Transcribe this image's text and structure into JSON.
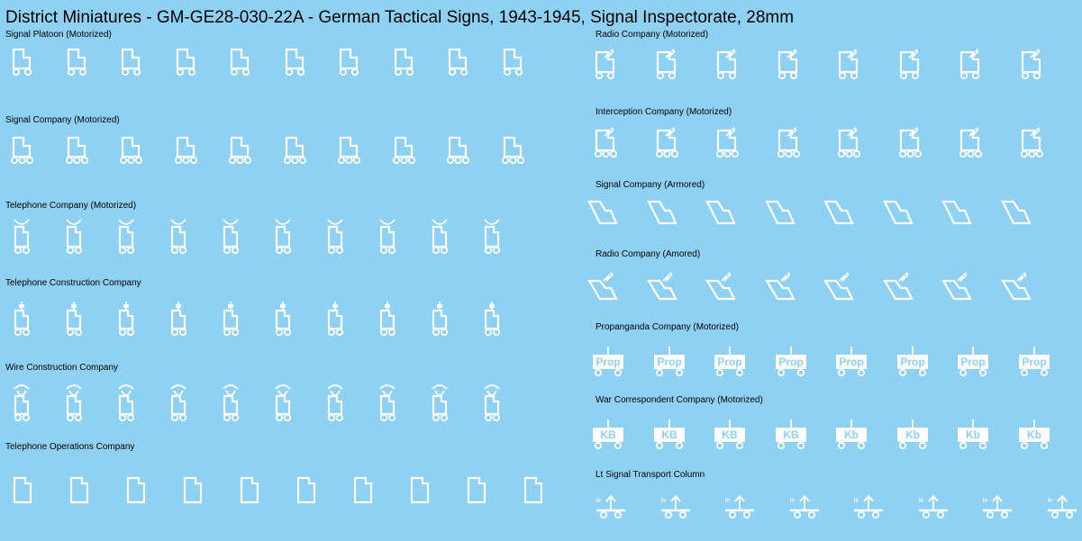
{
  "title": "District Miniatures - GM-GE28-030-22A - German Tactical Signs, 1943-1945, Signal Inspectorate, 28mm",
  "colors": {
    "background": "#8fd1f2",
    "signs": "#ffffff",
    "text": "#000000"
  },
  "sections": [
    {
      "id": "signal-platoon-motorized",
      "label": "Signal Platoon (Motorized)",
      "sign": "flag-wheels-2",
      "count": 10
    },
    {
      "id": "signal-company-motorized",
      "label": "Signal Company (Motorized)",
      "sign": "flag-wheels-3",
      "count": 10
    },
    {
      "id": "telephone-company-motorized",
      "label": "Telephone Company (Motorized)",
      "sign": "telephone-u-wheels",
      "count": 10
    },
    {
      "id": "telephone-construction-company",
      "label": "Telephone Construction Company",
      "sign": "telephone-pole-wheels",
      "count": 10
    },
    {
      "id": "wire-construction-company",
      "label": "Wire Construction Company",
      "sign": "telephone-arc-wheels",
      "count": 10
    },
    {
      "id": "telephone-operations-company",
      "label": "Telephone Operations Company",
      "sign": "flag-notched",
      "count": 10
    },
    {
      "id": "radio-company-motorized",
      "label": "Radio Company (Motorized)",
      "sign": "radio-flag-wheels-2",
      "count": 8
    },
    {
      "id": "interception-company-motorized",
      "label": "Interception Company (Motorized)",
      "sign": "radio-flag-wheels-3",
      "count": 8
    },
    {
      "id": "signal-company-armored",
      "label": "Signal Company (Armored)",
      "sign": "slanted-flag",
      "count": 8
    },
    {
      "id": "radio-company-armored",
      "label": "Radio Company (Amored)",
      "sign": "slanted-radio-flag",
      "count": 8
    },
    {
      "id": "propaganda-company-motorized",
      "label": "Propanganda Company (Motorized)",
      "sign": "prop-cart",
      "text_items": [
        "Prop",
        "Prop",
        "Prop",
        "Prop",
        "Prop",
        "Prop",
        "Prop",
        "Prop"
      ]
    },
    {
      "id": "war-correspondent-company-motorized",
      "label": "War Correspondent Company (Motorized)",
      "sign": "kb-cart",
      "text_items": [
        "KB",
        "KB",
        "KB",
        "KB",
        "Kb",
        "Kb",
        "Kb",
        "Kb"
      ]
    },
    {
      "id": "lt-signal-transport-column",
      "label": "Lt Signal Transport Column",
      "sign": "transport-column",
      "text_items": [
        "le",
        "le",
        "le",
        "le",
        "le",
        "le",
        "le",
        "le"
      ]
    }
  ]
}
